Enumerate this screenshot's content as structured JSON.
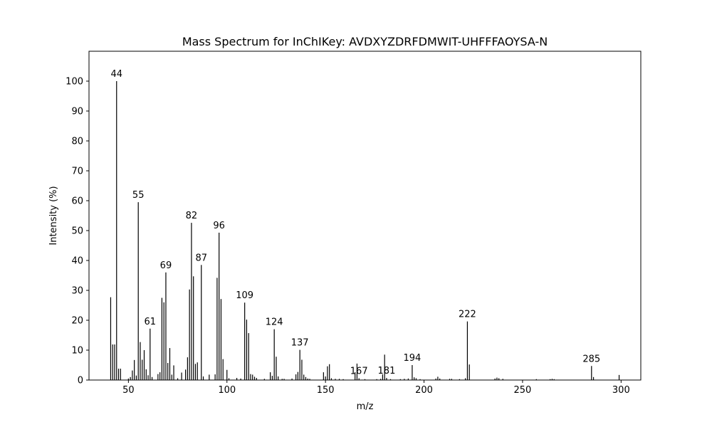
{
  "chart_data": {
    "type": "bar",
    "title": "Mass Spectrum for InChIKey: AVDXYZDRFDMWIT-UHFFFAOYSA-N",
    "xlabel": "m/z",
    "ylabel": "Intensity (%)",
    "xlim": [
      30,
      310
    ],
    "ylim": [
      0,
      110
    ],
    "xticks": [
      50,
      100,
      150,
      200,
      250,
      300
    ],
    "yticks": [
      0,
      10,
      20,
      30,
      40,
      50,
      60,
      70,
      80,
      90,
      100
    ],
    "grid": false,
    "bar_color": "#000000",
    "peaks": [
      {
        "mz": 41,
        "intensity": 27.7
      },
      {
        "mz": 42,
        "intensity": 11.9
      },
      {
        "mz": 43,
        "intensity": 11.9
      },
      {
        "mz": 44,
        "intensity": 100,
        "label": "44"
      },
      {
        "mz": 45,
        "intensity": 3.8
      },
      {
        "mz": 46,
        "intensity": 3.8
      },
      {
        "mz": 50,
        "intensity": 0.5
      },
      {
        "mz": 51,
        "intensity": 1.0
      },
      {
        "mz": 52,
        "intensity": 3.2
      },
      {
        "mz": 53,
        "intensity": 6.7
      },
      {
        "mz": 54,
        "intensity": 1.5
      },
      {
        "mz": 55,
        "intensity": 59.5,
        "label": "55"
      },
      {
        "mz": 56,
        "intensity": 12.7
      },
      {
        "mz": 57,
        "intensity": 6.8
      },
      {
        "mz": 58,
        "intensity": 10.0
      },
      {
        "mz": 59,
        "intensity": 3.6
      },
      {
        "mz": 60,
        "intensity": 1.6
      },
      {
        "mz": 61,
        "intensity": 17.2,
        "label": "61"
      },
      {
        "mz": 62,
        "intensity": 1.0
      },
      {
        "mz": 65,
        "intensity": 2.0
      },
      {
        "mz": 66,
        "intensity": 2.6
      },
      {
        "mz": 67,
        "intensity": 27.5
      },
      {
        "mz": 68,
        "intensity": 26.0
      },
      {
        "mz": 69,
        "intensity": 36.0,
        "label": "69"
      },
      {
        "mz": 70,
        "intensity": 5.7
      },
      {
        "mz": 71,
        "intensity": 10.7
      },
      {
        "mz": 72,
        "intensity": 1.8
      },
      {
        "mz": 73,
        "intensity": 4.9
      },
      {
        "mz": 75,
        "intensity": 0.6
      },
      {
        "mz": 77,
        "intensity": 2.5
      },
      {
        "mz": 79,
        "intensity": 3.5
      },
      {
        "mz": 80,
        "intensity": 7.6
      },
      {
        "mz": 81,
        "intensity": 30.3
      },
      {
        "mz": 82,
        "intensity": 52.6,
        "label": "82"
      },
      {
        "mz": 83,
        "intensity": 34.7
      },
      {
        "mz": 84,
        "intensity": 5.4
      },
      {
        "mz": 85,
        "intensity": 5.9
      },
      {
        "mz": 87,
        "intensity": 38.5,
        "label": "87"
      },
      {
        "mz": 88,
        "intensity": 1.2
      },
      {
        "mz": 91,
        "intensity": 1.8
      },
      {
        "mz": 94,
        "intensity": 1.9
      },
      {
        "mz": 95,
        "intensity": 34.2
      },
      {
        "mz": 96,
        "intensity": 49.3,
        "label": "96"
      },
      {
        "mz": 97,
        "intensity": 27.1
      },
      {
        "mz": 98,
        "intensity": 7.0
      },
      {
        "mz": 100,
        "intensity": 3.4
      },
      {
        "mz": 101,
        "intensity": 0.6
      },
      {
        "mz": 105,
        "intensity": 0.7
      },
      {
        "mz": 107,
        "intensity": 0.5
      },
      {
        "mz": 109,
        "intensity": 25.9,
        "label": "109"
      },
      {
        "mz": 110,
        "intensity": 20.2
      },
      {
        "mz": 111,
        "intensity": 15.7
      },
      {
        "mz": 112,
        "intensity": 2.0
      },
      {
        "mz": 113,
        "intensity": 1.8
      },
      {
        "mz": 114,
        "intensity": 1.1
      },
      {
        "mz": 115,
        "intensity": 0.7
      },
      {
        "mz": 119,
        "intensity": 0.4
      },
      {
        "mz": 122,
        "intensity": 2.6
      },
      {
        "mz": 123,
        "intensity": 1.4
      },
      {
        "mz": 124,
        "intensity": 17.0,
        "label": "124"
      },
      {
        "mz": 125,
        "intensity": 7.8
      },
      {
        "mz": 126,
        "intensity": 1.2
      },
      {
        "mz": 128,
        "intensity": 0.4
      },
      {
        "mz": 129,
        "intensity": 0.4
      },
      {
        "mz": 133,
        "intensity": 0.5
      },
      {
        "mz": 135,
        "intensity": 1.9
      },
      {
        "mz": 136,
        "intensity": 2.7
      },
      {
        "mz": 137,
        "intensity": 10.1,
        "label": "137"
      },
      {
        "mz": 138,
        "intensity": 6.8
      },
      {
        "mz": 139,
        "intensity": 1.8
      },
      {
        "mz": 140,
        "intensity": 1.0
      },
      {
        "mz": 141,
        "intensity": 0.5
      },
      {
        "mz": 142,
        "intensity": 0.4
      },
      {
        "mz": 149,
        "intensity": 2.6
      },
      {
        "mz": 150,
        "intensity": 1.2
      },
      {
        "mz": 151,
        "intensity": 4.6
      },
      {
        "mz": 152,
        "intensity": 5.3
      },
      {
        "mz": 153,
        "intensity": 0.6
      },
      {
        "mz": 155,
        "intensity": 0.4
      },
      {
        "mz": 157,
        "intensity": 0.4
      },
      {
        "mz": 159,
        "intensity": 0.3
      },
      {
        "mz": 165,
        "intensity": 2.6
      },
      {
        "mz": 166,
        "intensity": 5.5
      },
      {
        "mz": 167,
        "intensity": 0.6,
        "label": "167"
      },
      {
        "mz": 170,
        "intensity": 0.3
      },
      {
        "mz": 176,
        "intensity": 0.3
      },
      {
        "mz": 178,
        "intensity": 0.4
      },
      {
        "mz": 179,
        "intensity": 1.9
      },
      {
        "mz": 180,
        "intensity": 8.5
      },
      {
        "mz": 181,
        "intensity": 0.7,
        "label": "181"
      },
      {
        "mz": 183,
        "intensity": 0.3
      },
      {
        "mz": 188,
        "intensity": 0.3
      },
      {
        "mz": 190,
        "intensity": 0.4
      },
      {
        "mz": 192,
        "intensity": 0.5
      },
      {
        "mz": 194,
        "intensity": 5.0,
        "label": "194"
      },
      {
        "mz": 195,
        "intensity": 0.9
      },
      {
        "mz": 196,
        "intensity": 0.6
      },
      {
        "mz": 198,
        "intensity": 0.3
      },
      {
        "mz": 206,
        "intensity": 0.5
      },
      {
        "mz": 207,
        "intensity": 1.1
      },
      {
        "mz": 208,
        "intensity": 0.5
      },
      {
        "mz": 213,
        "intensity": 0.4
      },
      {
        "mz": 214,
        "intensity": 0.4
      },
      {
        "mz": 218,
        "intensity": 0.3
      },
      {
        "mz": 221,
        "intensity": 0.6
      },
      {
        "mz": 222,
        "intensity": 19.6,
        "label": "222"
      },
      {
        "mz": 223,
        "intensity": 5.2
      },
      {
        "mz": 236,
        "intensity": 0.5
      },
      {
        "mz": 237,
        "intensity": 0.8
      },
      {
        "mz": 238,
        "intensity": 0.6
      },
      {
        "mz": 240,
        "intensity": 0.4
      },
      {
        "mz": 257,
        "intensity": 0.3
      },
      {
        "mz": 264,
        "intensity": 0.3
      },
      {
        "mz": 265,
        "intensity": 0.4
      },
      {
        "mz": 266,
        "intensity": 0.3
      },
      {
        "mz": 285,
        "intensity": 4.7,
        "label": "285"
      },
      {
        "mz": 286,
        "intensity": 1.0
      },
      {
        "mz": 299,
        "intensity": 1.7
      }
    ]
  }
}
